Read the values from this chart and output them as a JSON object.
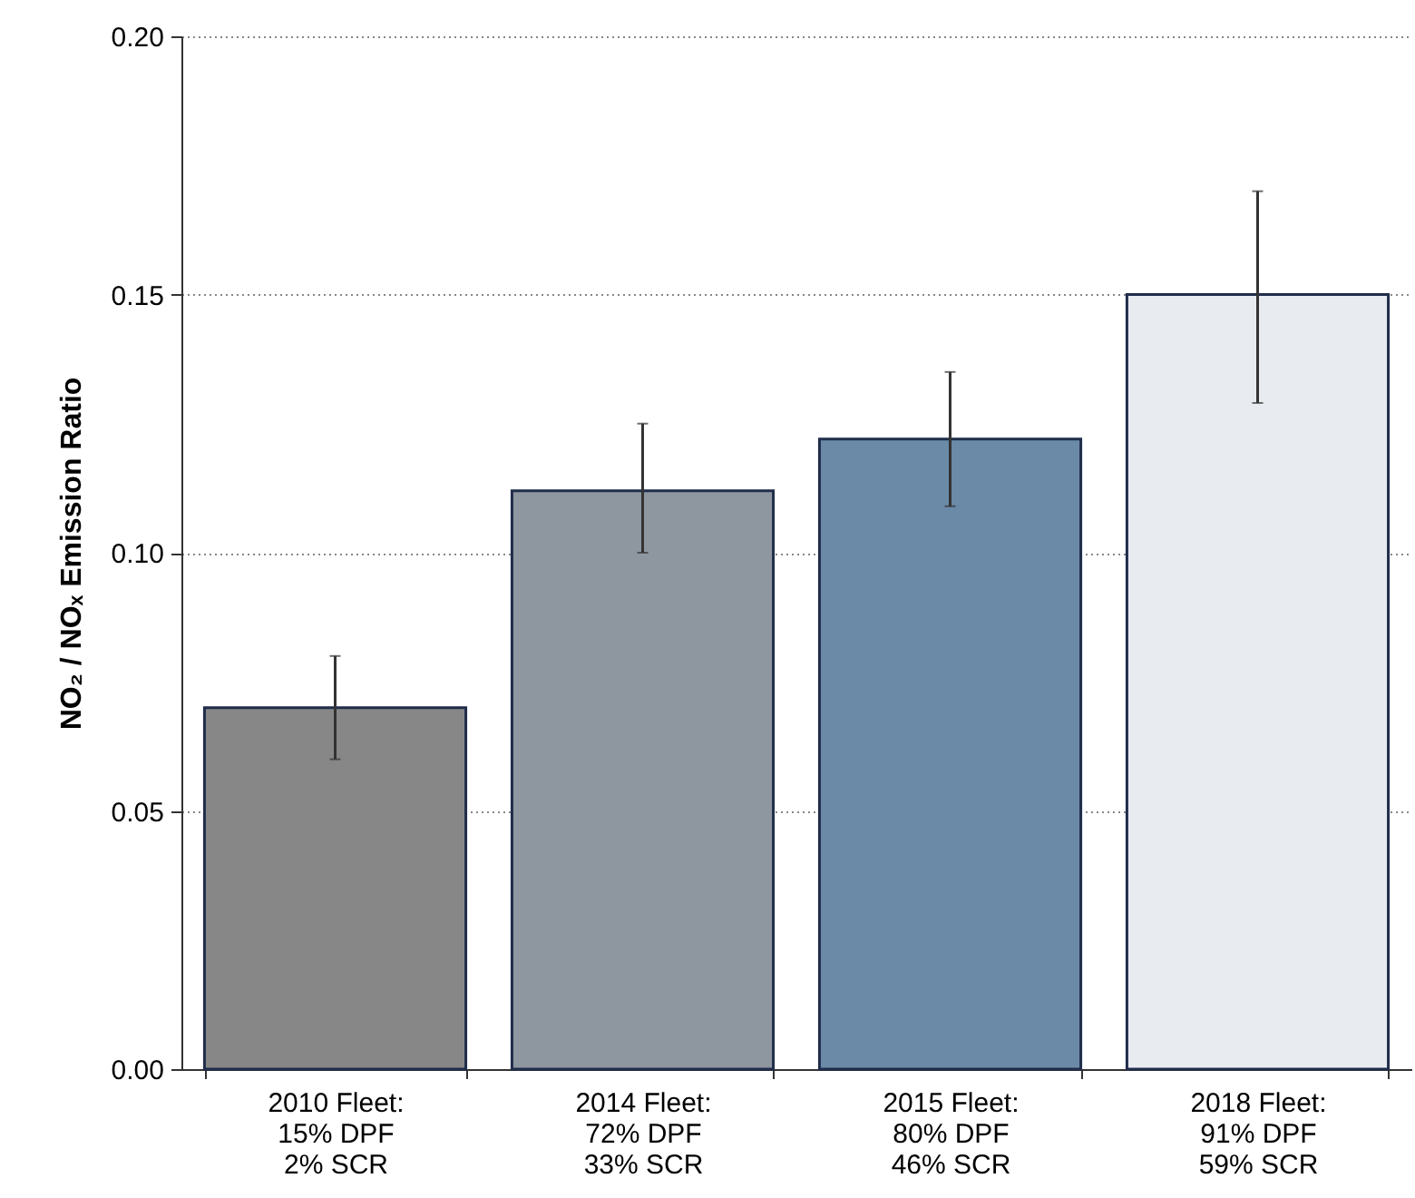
{
  "chart_data": {
    "type": "bar",
    "ylabel": "NO₂ / NOₓ Emission Ratio",
    "categories": [
      "2010 Fleet:\n15% DPF\n2% SCR",
      "2014 Fleet:\n72% DPF\n33% SCR",
      "2015 Fleet:\n80% DPF\n46% SCR",
      "2018 Fleet:\n91% DPF\n59% SCR"
    ],
    "values": [
      0.07,
      0.112,
      0.122,
      0.15
    ],
    "colors": [
      "#878787",
      "#8e96a0",
      "#6b8aa8",
      "#e8ebf0"
    ],
    "errors": [
      [
        0.06,
        0.08
      ],
      [
        0.1,
        0.125
      ],
      [
        0.109,
        0.135
      ],
      [
        0.129,
        0.17
      ]
    ],
    "ylim": [
      0,
      0.2
    ],
    "yticks": [
      {
        "value": 0,
        "label": "0.00"
      },
      {
        "value": 0.05,
        "label": "0.05"
      },
      {
        "value": 0.1,
        "label": "0.10"
      },
      {
        "value": 0.15,
        "label": "0.15"
      },
      {
        "value": 0.2,
        "label": "0.20"
      }
    ],
    "grid": "y"
  }
}
